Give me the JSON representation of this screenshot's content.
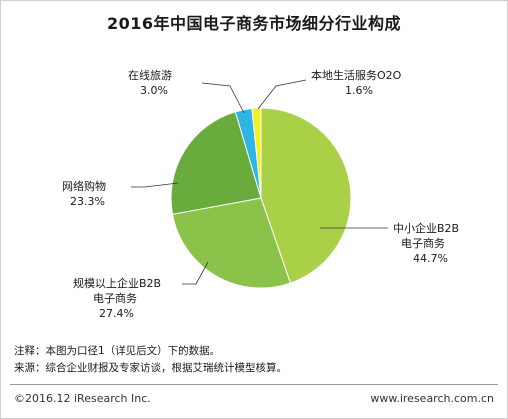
{
  "chart_data": {
    "type": "pie",
    "title": "2016年中国电子商务市场细分行业构成",
    "unit": "%",
    "slices": [
      {
        "label": "中小企业B2B电子商务",
        "label_lines": [
          "中小企业B2B",
          "电子商务"
        ],
        "value": 44.7,
        "display": "44.7%",
        "color": "#a9d047"
      },
      {
        "label": "规模以上企业B2B电子商务",
        "label_lines": [
          "规模以上企业B2B",
          "电子商务"
        ],
        "value": 27.4,
        "display": "27.4%",
        "color": "#8bc34a"
      },
      {
        "label": "网络购物",
        "label_lines": [
          "网络购物"
        ],
        "value": 23.3,
        "display": "23.3%",
        "color": "#6aab3d"
      },
      {
        "label": "在线旅游",
        "label_lines": [
          "在线旅游"
        ],
        "value": 3.0,
        "display": "3.0%",
        "color": "#2fb5e5"
      },
      {
        "label": "本地生活服务O2O",
        "label_lines": [
          "本地生活服务O2O"
        ],
        "value": 1.6,
        "display": "1.6%",
        "color": "#f4ee24"
      }
    ]
  },
  "notes": {
    "note1": "注释：本图为口径1（详见后文）下的数据。",
    "note2": "来源：综合企业财报及专家访谈，根据艾瑞统计模型核算。"
  },
  "footer": {
    "copyright": "©2016.12 iResearch Inc.",
    "website": "www.iresearch.com.cn"
  }
}
